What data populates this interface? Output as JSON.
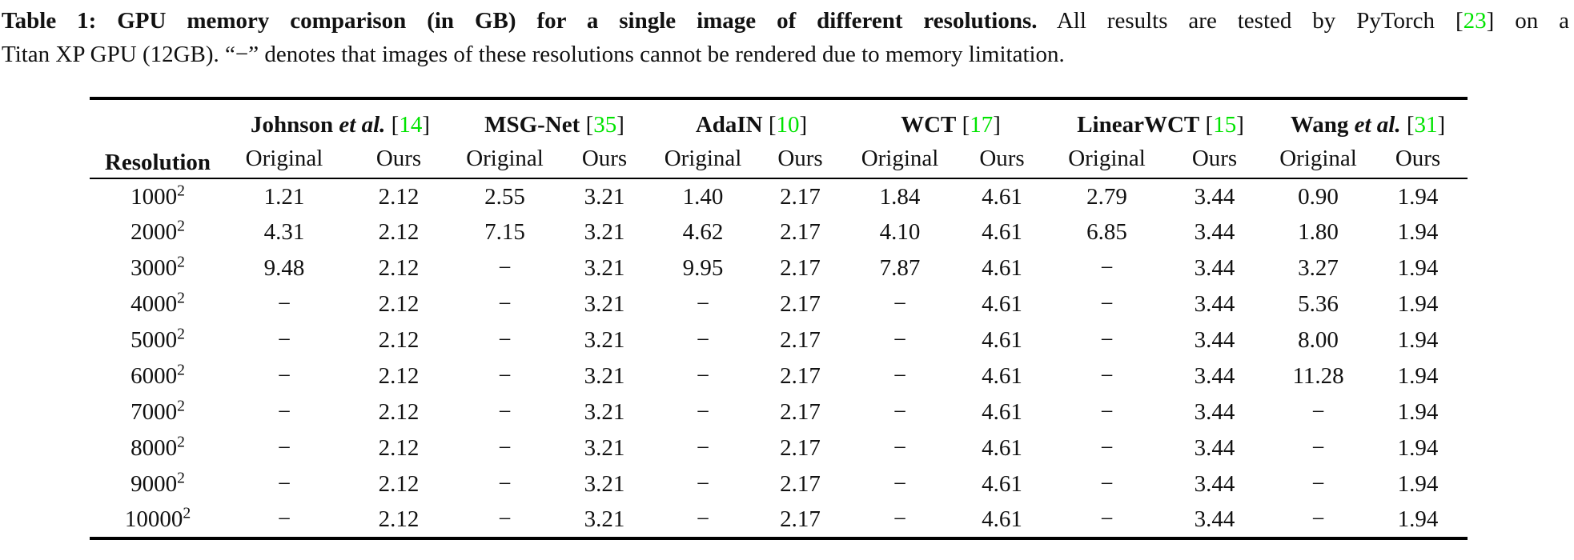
{
  "colors": {
    "citation_green": "#00E400",
    "text": "#111111",
    "rule": "#000000"
  },
  "caption": {
    "line1_bold": "Table 1: GPU memory comparison (in GB) for a single image of different resolutions.",
    "line1_normal": " All results are tested by PyTorch ",
    "cite_open": "[",
    "cite_num": "23",
    "cite_close": "]",
    "line1_end": " on a",
    "line2": "Titan XP GPU (12GB). “−” denotes that images of these resolutions cannot be rendered due to memory limitation."
  },
  "table": {
    "resolution_header": "Resolution",
    "cite_open": "[",
    "cite_close": "]",
    "groups": [
      {
        "name": "Johnson",
        "etal": " et al.",
        "cite": "14"
      },
      {
        "name": "MSG-Net",
        "etal": "",
        "cite": "35"
      },
      {
        "name": "AdaIN",
        "etal": "",
        "cite": "10"
      },
      {
        "name": "WCT",
        "etal": "",
        "cite": "17"
      },
      {
        "name": "LinearWCT",
        "etal": "",
        "cite": "15"
      },
      {
        "name": "Wang",
        "etal": " et al.",
        "cite": "31"
      }
    ],
    "subheader": {
      "original": "Original",
      "ours": "Ours"
    },
    "rows": [
      {
        "resolution": "1000",
        "sup": "2",
        "values": [
          "1.21",
          "2.12",
          "2.55",
          "3.21",
          "1.40",
          "2.17",
          "1.84",
          "4.61",
          "2.79",
          "3.44",
          "0.90",
          "1.94"
        ]
      },
      {
        "resolution": "2000",
        "sup": "2",
        "values": [
          "4.31",
          "2.12",
          "7.15",
          "3.21",
          "4.62",
          "2.17",
          "4.10",
          "4.61",
          "6.85",
          "3.44",
          "1.80",
          "1.94"
        ]
      },
      {
        "resolution": "3000",
        "sup": "2",
        "values": [
          "9.48",
          "2.12",
          "−",
          "3.21",
          "9.95",
          "2.17",
          "7.87",
          "4.61",
          "−",
          "3.44",
          "3.27",
          "1.94"
        ]
      },
      {
        "resolution": "4000",
        "sup": "2",
        "values": [
          "−",
          "2.12",
          "−",
          "3.21",
          "−",
          "2.17",
          "−",
          "4.61",
          "−",
          "3.44",
          "5.36",
          "1.94"
        ]
      },
      {
        "resolution": "5000",
        "sup": "2",
        "values": [
          "−",
          "2.12",
          "−",
          "3.21",
          "−",
          "2.17",
          "−",
          "4.61",
          "−",
          "3.44",
          "8.00",
          "1.94"
        ]
      },
      {
        "resolution": "6000",
        "sup": "2",
        "values": [
          "−",
          "2.12",
          "−",
          "3.21",
          "−",
          "2.17",
          "−",
          "4.61",
          "−",
          "3.44",
          "11.28",
          "1.94"
        ]
      },
      {
        "resolution": "7000",
        "sup": "2",
        "values": [
          "−",
          "2.12",
          "−",
          "3.21",
          "−",
          "2.17",
          "−",
          "4.61",
          "−",
          "3.44",
          "−",
          "1.94"
        ]
      },
      {
        "resolution": "8000",
        "sup": "2",
        "values": [
          "−",
          "2.12",
          "−",
          "3.21",
          "−",
          "2.17",
          "−",
          "4.61",
          "−",
          "3.44",
          "−",
          "1.94"
        ]
      },
      {
        "resolution": "9000",
        "sup": "2",
        "values": [
          "−",
          "2.12",
          "−",
          "3.21",
          "−",
          "2.17",
          "−",
          "4.61",
          "−",
          "3.44",
          "−",
          "1.94"
        ]
      },
      {
        "resolution": "10000",
        "sup": "2",
        "values": [
          "−",
          "2.12",
          "−",
          "3.21",
          "−",
          "2.17",
          "−",
          "4.61",
          "−",
          "3.44",
          "−",
          "1.94"
        ]
      }
    ]
  }
}
